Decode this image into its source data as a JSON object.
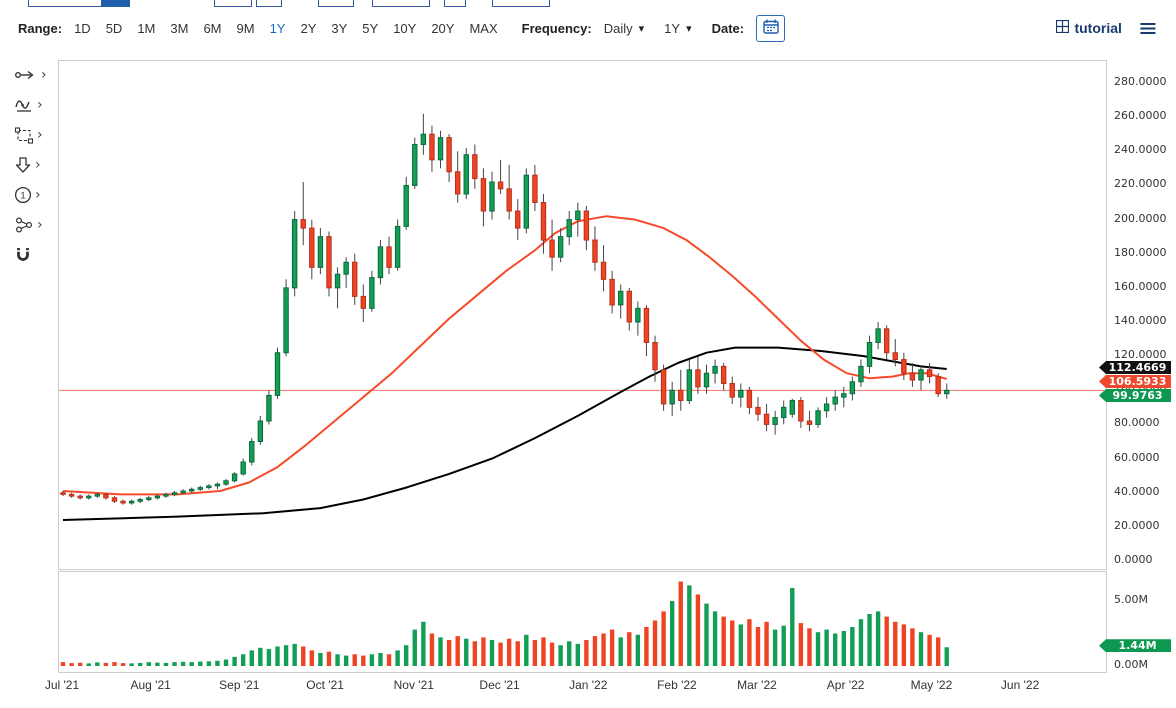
{
  "toolbar": {
    "range_label": "Range:",
    "range_options": [
      "1D",
      "5D",
      "1M",
      "3M",
      "6M",
      "9M",
      "1Y",
      "2Y",
      "3Y",
      "5Y",
      "10Y",
      "20Y",
      "MAX"
    ],
    "range_active": "1Y",
    "frequency_label": "Frequency:",
    "frequency_value": "Daily",
    "period_value": "1Y",
    "date_label": "Date:",
    "tutorial_label": "tutorial"
  },
  "sidebar": {
    "tools": [
      {
        "name": "line-draw-tool",
        "icon": "line-draw-icon",
        "has_submenu": true
      },
      {
        "name": "indicators-tool",
        "icon": "indicators-icon",
        "has_submenu": true
      },
      {
        "name": "selection-tool",
        "icon": "selection-rect-icon",
        "has_submenu": true
      },
      {
        "name": "arrow-annotation-tool",
        "icon": "arrow-down-icon",
        "has_submenu": true
      },
      {
        "name": "number-annotation-tool",
        "icon": "circled-one-icon",
        "has_submenu": true
      },
      {
        "name": "flowchart-tool",
        "icon": "flowchart-icon",
        "has_submenu": true
      },
      {
        "name": "magnet-snap-tool",
        "icon": "magnet-icon",
        "has_submenu": false
      }
    ]
  },
  "chart_data": {
    "type": "candlestick",
    "frequency": "Daily",
    "x_tick_labels": [
      "Jul '21",
      "Aug '21",
      "Sep '21",
      "Oct '21",
      "Nov '21",
      "Dec '21",
      "Jan '22",
      "Feb '22",
      "Mar '22",
      "Apr '22",
      "May '22",
      "Jun '22"
    ],
    "x_tick_days": [
      0,
      31,
      62,
      92,
      123,
      153,
      184,
      215,
      243,
      274,
      304,
      335
    ],
    "y_ticks": [
      "280.0000",
      "260.0000",
      "240.0000",
      "220.0000",
      "200.0000",
      "180.0000",
      "160.0000",
      "140.0000",
      "120.0000",
      "100.0000",
      "80.0000",
      "60.0000",
      "40.0000",
      "20.0000",
      "0.0000"
    ],
    "ylim": [
      0,
      293
    ],
    "volume_ticks": [
      "5.00M",
      "0.00M"
    ],
    "prior_close_line": 99.9763,
    "series": {
      "candles_ohlcv": [
        [
          0,
          40,
          41,
          38,
          39,
          0.3
        ],
        [
          3,
          39,
          40,
          37,
          38,
          0.22
        ],
        [
          6,
          38,
          39,
          36,
          37,
          0.25
        ],
        [
          9,
          37,
          39,
          36,
          38,
          0.2
        ],
        [
          12,
          38,
          40,
          37,
          39,
          0.28
        ],
        [
          15,
          39,
          40,
          36,
          37,
          0.24
        ],
        [
          18,
          37,
          38,
          34,
          35,
          0.3
        ],
        [
          21,
          35,
          36,
          33,
          34,
          0.22
        ],
        [
          24,
          34,
          36,
          33,
          35,
          0.2
        ],
        [
          27,
          35,
          37,
          34,
          36,
          0.24
        ],
        [
          30,
          36,
          38,
          35,
          37,
          0.3
        ],
        [
          33,
          37,
          39,
          36,
          38,
          0.26
        ],
        [
          36,
          38,
          40,
          37,
          39,
          0.24
        ],
        [
          39,
          39,
          41,
          38,
          40,
          0.3
        ],
        [
          42,
          40,
          42,
          39,
          41,
          0.32
        ],
        [
          45,
          41,
          43,
          40,
          42,
          0.3
        ],
        [
          48,
          42,
          44,
          41,
          43,
          0.34
        ],
        [
          51,
          43,
          45,
          42,
          44,
          0.36
        ],
        [
          54,
          44,
          46,
          42,
          45,
          0.4
        ],
        [
          57,
          45,
          48,
          44,
          47,
          0.5
        ],
        [
          60,
          47,
          52,
          46,
          51,
          0.7
        ],
        [
          63,
          51,
          60,
          50,
          58,
          0.9
        ],
        [
          66,
          58,
          72,
          56,
          70,
          1.2
        ],
        [
          69,
          70,
          85,
          68,
          82,
          1.4
        ],
        [
          72,
          82,
          100,
          80,
          97,
          1.3
        ],
        [
          75,
          97,
          125,
          95,
          122,
          1.5
        ],
        [
          78,
          122,
          165,
          120,
          160,
          1.6
        ],
        [
          81,
          160,
          205,
          155,
          200,
          1.7
        ],
        [
          84,
          200,
          222,
          185,
          195,
          1.5
        ],
        [
          87,
          195,
          200,
          165,
          172,
          1.2
        ],
        [
          90,
          172,
          195,
          168,
          190,
          1.0
        ],
        [
          93,
          190,
          193,
          155,
          160,
          1.1
        ],
        [
          96,
          160,
          172,
          148,
          168,
          0.9
        ],
        [
          99,
          168,
          178,
          160,
          175,
          0.8
        ],
        [
          102,
          175,
          180,
          150,
          155,
          0.9
        ],
        [
          105,
          155,
          162,
          140,
          148,
          0.8
        ],
        [
          108,
          148,
          170,
          146,
          166,
          0.9
        ],
        [
          111,
          166,
          188,
          162,
          184,
          1.0
        ],
        [
          114,
          184,
          190,
          168,
          172,
          0.9
        ],
        [
          117,
          172,
          200,
          170,
          196,
          1.2
        ],
        [
          120,
          196,
          225,
          194,
          220,
          1.6
        ],
        [
          123,
          220,
          248,
          218,
          244,
          2.8
        ],
        [
          126,
          244,
          262,
          238,
          250,
          3.4
        ],
        [
          129,
          250,
          255,
          228,
          235,
          2.5
        ],
        [
          132,
          235,
          252,
          230,
          248,
          2.2
        ],
        [
          135,
          248,
          250,
          222,
          228,
          2.0
        ],
        [
          138,
          228,
          240,
          210,
          215,
          2.3
        ],
        [
          141,
          215,
          242,
          212,
          238,
          2.1
        ],
        [
          144,
          238,
          244,
          218,
          224,
          1.9
        ],
        [
          147,
          224,
          230,
          196,
          205,
          2.2
        ],
        [
          150,
          205,
          228,
          200,
          222,
          2.0
        ],
        [
          153,
          222,
          235,
          215,
          218,
          1.8
        ],
        [
          156,
          218,
          232,
          200,
          205,
          2.1
        ],
        [
          159,
          205,
          212,
          188,
          195,
          1.9
        ],
        [
          162,
          195,
          230,
          192,
          226,
          2.4
        ],
        [
          165,
          226,
          232,
          205,
          210,
          2.0
        ],
        [
          168,
          210,
          215,
          180,
          188,
          2.2
        ],
        [
          171,
          188,
          200,
          170,
          178,
          1.8
        ],
        [
          174,
          178,
          195,
          175,
          190,
          1.6
        ],
        [
          177,
          190,
          205,
          185,
          200,
          1.9
        ],
        [
          180,
          200,
          210,
          190,
          205,
          1.7
        ],
        [
          183,
          205,
          208,
          182,
          188,
          2.0
        ],
        [
          186,
          188,
          196,
          170,
          175,
          2.3
        ],
        [
          189,
          175,
          185,
          158,
          165,
          2.5
        ],
        [
          192,
          165,
          170,
          145,
          150,
          2.8
        ],
        [
          195,
          150,
          162,
          142,
          158,
          2.2
        ],
        [
          198,
          158,
          160,
          135,
          140,
          2.6
        ],
        [
          201,
          140,
          152,
          132,
          148,
          2.4
        ],
        [
          204,
          148,
          150,
          120,
          128,
          3.0
        ],
        [
          207,
          128,
          132,
          105,
          112,
          3.5
        ],
        [
          210,
          112,
          115,
          88,
          92,
          4.2
        ],
        [
          213,
          92,
          105,
          85,
          100,
          5.0
        ],
        [
          216,
          100,
          112,
          88,
          94,
          6.5
        ],
        [
          219,
          94,
          118,
          92,
          112,
          6.2
        ],
        [
          222,
          112,
          120,
          98,
          102,
          5.5
        ],
        [
          225,
          102,
          115,
          98,
          110,
          4.8
        ],
        [
          228,
          110,
          118,
          104,
          114,
          4.2
        ],
        [
          231,
          114,
          116,
          100,
          104,
          3.8
        ],
        [
          234,
          104,
          108,
          92,
          96,
          3.5
        ],
        [
          237,
          96,
          104,
          90,
          100,
          3.2
        ],
        [
          240,
          100,
          102,
          86,
          90,
          3.6
        ],
        [
          243,
          90,
          96,
          82,
          86,
          3.0
        ],
        [
          246,
          86,
          92,
          76,
          80,
          3.4
        ],
        [
          249,
          80,
          88,
          74,
          84,
          2.8
        ],
        [
          252,
          84,
          94,
          80,
          90,
          3.1
        ],
        [
          255,
          86,
          95,
          84,
          94,
          6.0
        ],
        [
          258,
          94,
          96,
          78,
          82,
          3.3
        ],
        [
          261,
          82,
          88,
          76,
          80,
          2.9
        ],
        [
          264,
          80,
          90,
          78,
          88,
          2.6
        ],
        [
          267,
          88,
          96,
          84,
          92,
          2.8
        ],
        [
          270,
          92,
          100,
          88,
          96,
          2.5
        ],
        [
          273,
          96,
          102,
          90,
          98,
          2.7
        ],
        [
          276,
          98,
          108,
          94,
          105,
          3.0
        ],
        [
          279,
          105,
          118,
          102,
          114,
          3.6
        ],
        [
          282,
          114,
          132,
          110,
          128,
          4.0
        ],
        [
          285,
          128,
          140,
          124,
          136,
          4.2
        ],
        [
          288,
          136,
          138,
          118,
          122,
          3.8
        ],
        [
          291,
          122,
          130,
          114,
          118,
          3.4
        ],
        [
          294,
          118,
          122,
          106,
          110,
          3.2
        ],
        [
          297,
          110,
          116,
          102,
          106,
          2.9
        ],
        [
          300,
          106,
          114,
          100,
          112,
          2.6
        ],
        [
          303,
          112,
          116,
          104,
          108,
          2.4
        ],
        [
          306,
          108,
          110,
          96,
          98,
          2.2
        ],
        [
          309,
          98,
          104,
          95,
          99.9763,
          1.44
        ]
      ],
      "ma50": {
        "name": "50-day moving average",
        "color": "#f9492b",
        "points": [
          [
            0,
            41
          ],
          [
            20,
            39
          ],
          [
            40,
            39
          ],
          [
            55,
            41
          ],
          [
            65,
            46
          ],
          [
            75,
            55
          ],
          [
            85,
            68
          ],
          [
            95,
            82
          ],
          [
            105,
            96
          ],
          [
            115,
            110
          ],
          [
            125,
            126
          ],
          [
            135,
            142
          ],
          [
            145,
            156
          ],
          [
            155,
            170
          ],
          [
            165,
            182
          ],
          [
            172,
            192
          ],
          [
            180,
            199
          ],
          [
            190,
            202
          ],
          [
            200,
            200
          ],
          [
            210,
            195
          ],
          [
            218,
            188
          ],
          [
            226,
            178
          ],
          [
            234,
            167
          ],
          [
            242,
            155
          ],
          [
            250,
            142
          ],
          [
            258,
            129
          ],
          [
            266,
            118
          ],
          [
            274,
            110
          ],
          [
            282,
            107
          ],
          [
            290,
            108
          ],
          [
            296,
            110
          ],
          [
            302,
            110
          ],
          [
            306,
            108
          ],
          [
            309,
            106.59
          ]
        ]
      },
      "ma200": {
        "name": "200-day moving average",
        "color": "#000000",
        "points": [
          [
            0,
            24
          ],
          [
            40,
            26
          ],
          [
            70,
            28
          ],
          [
            90,
            31
          ],
          [
            105,
            36
          ],
          [
            120,
            43
          ],
          [
            135,
            51
          ],
          [
            150,
            60
          ],
          [
            165,
            72
          ],
          [
            180,
            85
          ],
          [
            195,
            99
          ],
          [
            205,
            108
          ],
          [
            215,
            116
          ],
          [
            225,
            122
          ],
          [
            235,
            125
          ],
          [
            250,
            125
          ],
          [
            265,
            123
          ],
          [
            280,
            120
          ],
          [
            290,
            117
          ],
          [
            300,
            114
          ],
          [
            309,
            112.47
          ]
        ]
      }
    },
    "colors": {
      "up": "#129e57",
      "up_dark": "#0b6b3a",
      "down": "#ee4423",
      "down_dark": "#b9301a",
      "wick": "#444444",
      "prior_close": "#f4746a"
    },
    "price_badges": [
      {
        "label": "112.4669",
        "color": "#111111"
      },
      {
        "label": "106.5933",
        "color": "#f0482e"
      },
      {
        "label": "99.9763",
        "color": "#0c9850"
      }
    ],
    "volume_badge": {
      "label": "1.44M",
      "color": "#0c9850"
    }
  }
}
